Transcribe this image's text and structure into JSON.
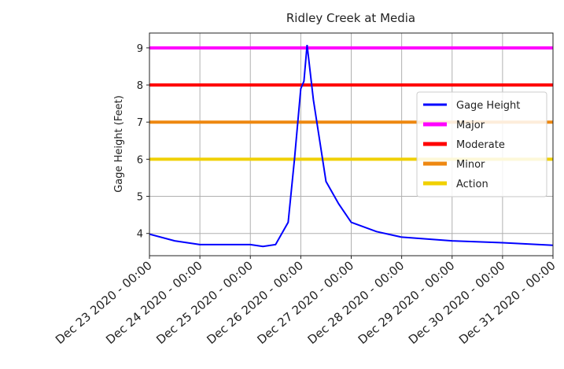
{
  "chart_data": {
    "type": "line",
    "title": "Ridley Creek at Media",
    "ylabel": "Gage Height (Feet)",
    "x": [
      "2020-12-23T00:00",
      "2020-12-23T12:00",
      "2020-12-24T00:00",
      "2020-12-24T12:00",
      "2020-12-25T00:00",
      "2020-12-25T06:00",
      "2020-12-25T12:00",
      "2020-12-25T18:00",
      "2020-12-25T21:00",
      "2020-12-26T00:00",
      "2020-12-26T01:30",
      "2020-12-26T03:00",
      "2020-12-26T06:00",
      "2020-12-26T09:00",
      "2020-12-26T12:00",
      "2020-12-26T18:00",
      "2020-12-27T00:00",
      "2020-12-27T12:00",
      "2020-12-28T00:00",
      "2020-12-29T00:00",
      "2020-12-30T00:00",
      "2020-12-31T00:00"
    ],
    "series": [
      {
        "name": "Gage Height",
        "color": "#0000ff",
        "values": [
          3.98,
          3.8,
          3.7,
          3.7,
          3.7,
          3.65,
          3.7,
          4.3,
          6.0,
          7.9,
          8.1,
          9.08,
          7.6,
          6.5,
          5.4,
          4.8,
          4.3,
          4.05,
          3.9,
          3.8,
          3.75,
          3.68
        ]
      }
    ],
    "hlines": [
      {
        "name": "Major",
        "color": "#ff00ff",
        "value": 9
      },
      {
        "name": "Moderate",
        "color": "#ff0000",
        "value": 8
      },
      {
        "name": "Minor",
        "color": "#ee8811",
        "value": 7
      },
      {
        "name": "Action",
        "color": "#f0d000",
        "value": 6
      }
    ],
    "xlim": [
      "2020-12-23T00:00",
      "2020-12-31T00:00"
    ],
    "xticks": [
      {
        "value": "2020-12-23T00:00",
        "label": "Dec 23 2020 - 00:00"
      },
      {
        "value": "2020-12-24T00:00",
        "label": "Dec 24 2020 - 00:00"
      },
      {
        "value": "2020-12-25T00:00",
        "label": "Dec 25 2020 - 00:00"
      },
      {
        "value": "2020-12-26T00:00",
        "label": "Dec 26 2020 - 00:00"
      },
      {
        "value": "2020-12-27T00:00",
        "label": "Dec 27 2020 - 00:00"
      },
      {
        "value": "2020-12-28T00:00",
        "label": "Dec 28 2020 - 00:00"
      },
      {
        "value": "2020-12-29T00:00",
        "label": "Dec 29 2020 - 00:00"
      },
      {
        "value": "2020-12-30T00:00",
        "label": "Dec 30 2020 - 00:00"
      },
      {
        "value": "2020-12-31T00:00",
        "label": "Dec 31 2020 - 00:00"
      }
    ],
    "ylim": [
      3.4,
      9.4
    ],
    "yticks": [
      4,
      5,
      6,
      7,
      8,
      9
    ],
    "grid": true,
    "legend": "center right"
  }
}
